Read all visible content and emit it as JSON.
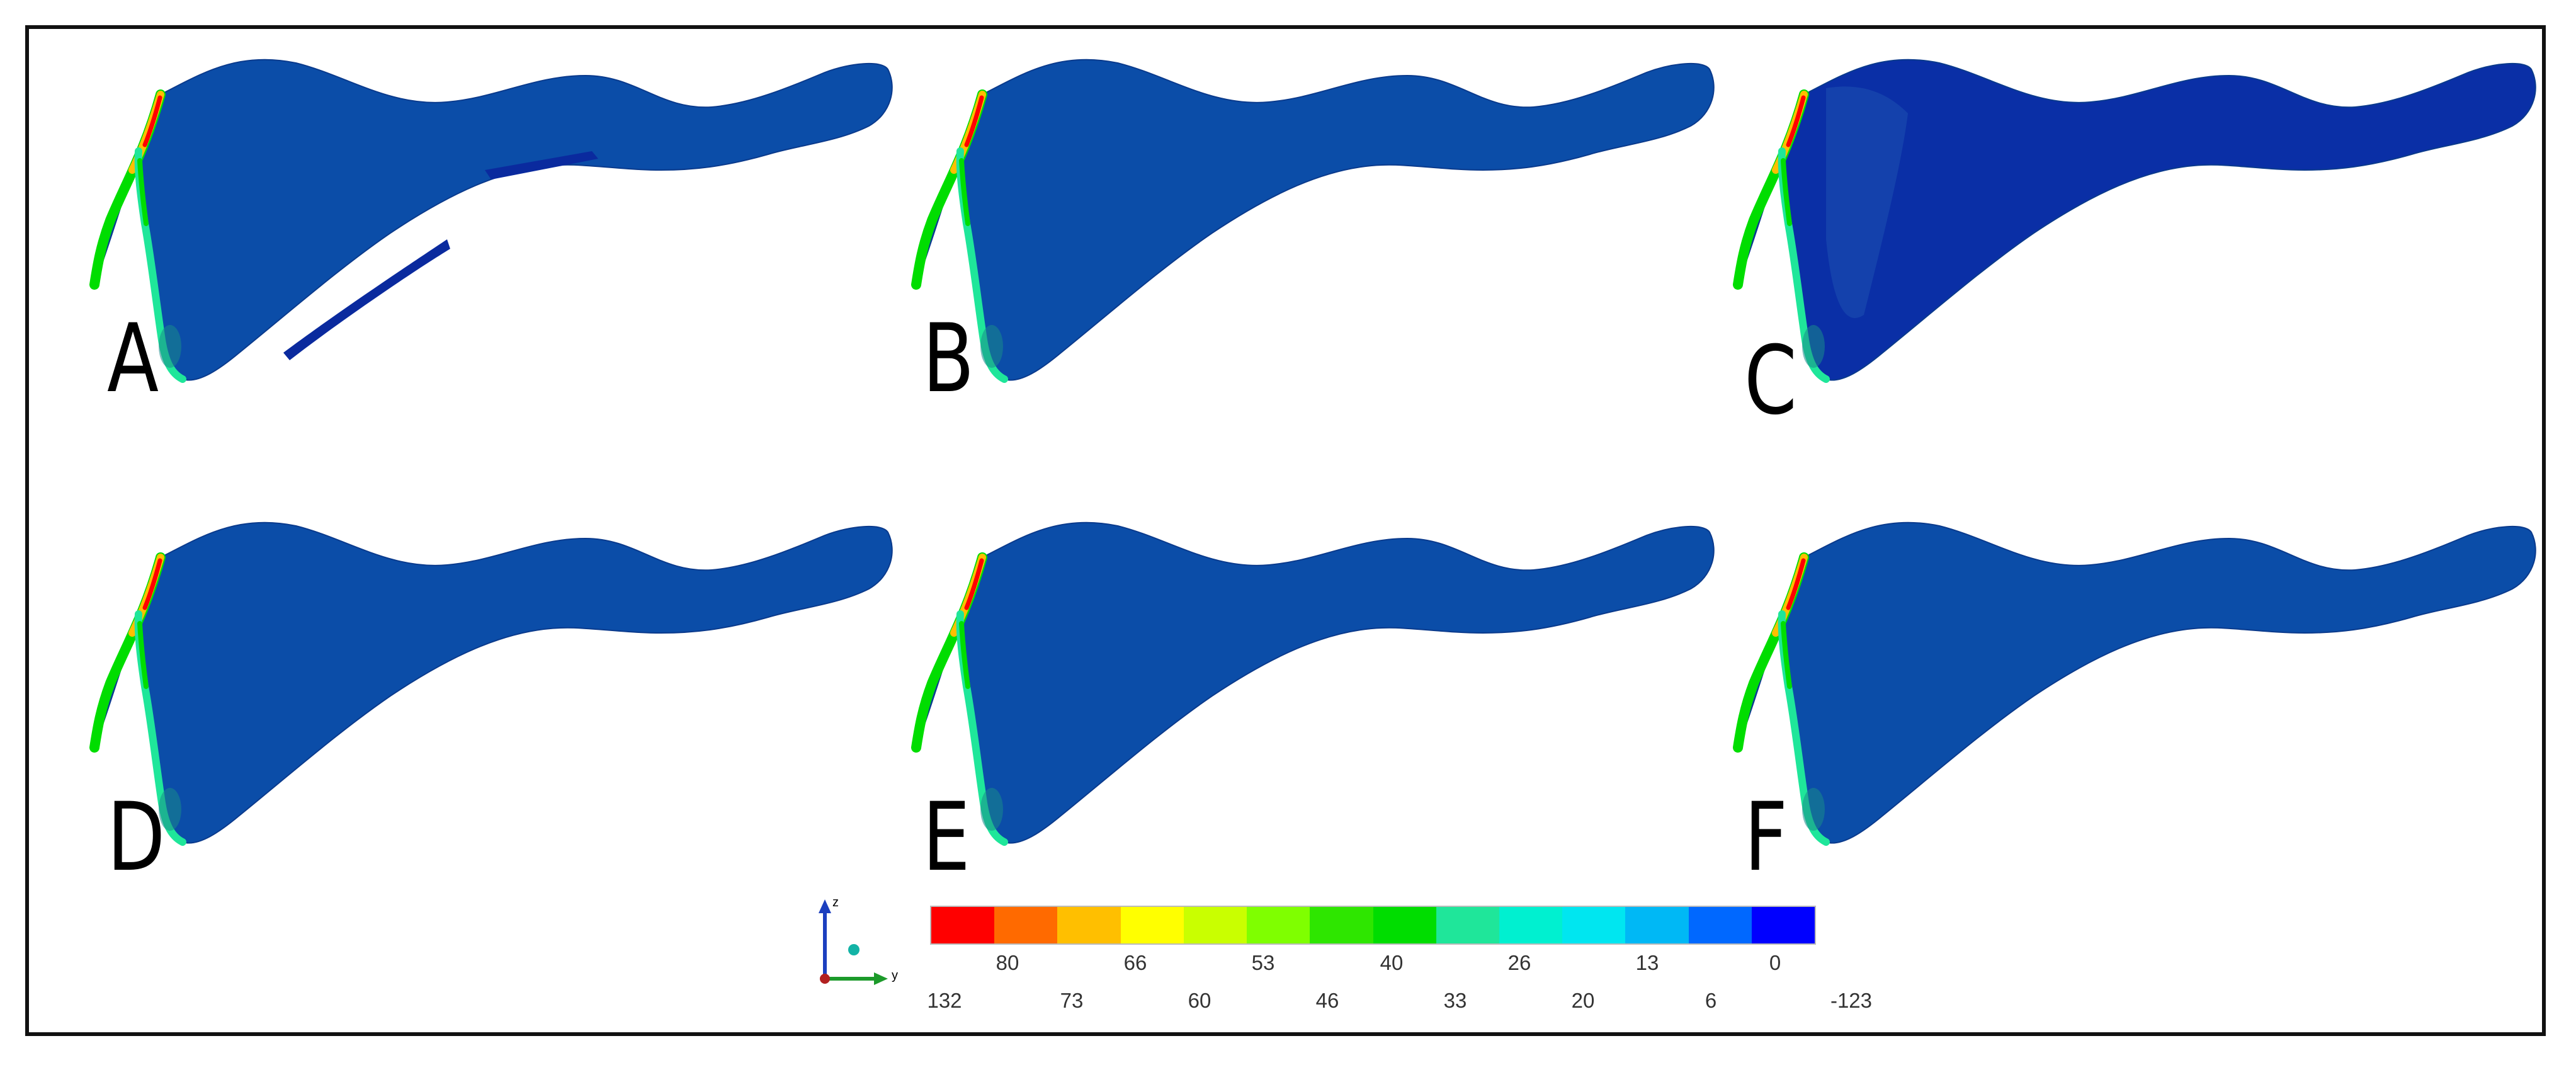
{
  "figure": {
    "panels": [
      {
        "label": "A",
        "variant": "a"
      },
      {
        "label": "B",
        "variant": "std"
      },
      {
        "label": "C",
        "variant": "c"
      },
      {
        "label": "D",
        "variant": "std"
      },
      {
        "label": "E",
        "variant": "std"
      },
      {
        "label": "F",
        "variant": "std"
      }
    ],
    "legend": {
      "colors": [
        "#ff0000",
        "#ff6a00",
        "#ffbf00",
        "#ffff00",
        "#c9ff00",
        "#7fff00",
        "#2ee600",
        "#00dd00",
        "#1fe69a",
        "#00f0d0",
        "#00e6f0",
        "#00b8f5",
        "#0068ff",
        "#0000ff"
      ],
      "upper_ticks": [
        "80",
        "66",
        "53",
        "40",
        "26",
        "13",
        "0"
      ],
      "lower_ticks": [
        "132",
        "73",
        "60",
        "46",
        "33",
        "20",
        "6",
        "-123"
      ]
    },
    "axes": {
      "vertical": "z",
      "horizontal": "y"
    },
    "palette": {
      "body": "#0b4da8",
      "body_deep": "#0a2fa6",
      "stress_high": "#ff0000",
      "stress_mid": "#ffbf00",
      "stress_low": "#00dd00",
      "stress_cyan": "#1fe69a"
    }
  }
}
